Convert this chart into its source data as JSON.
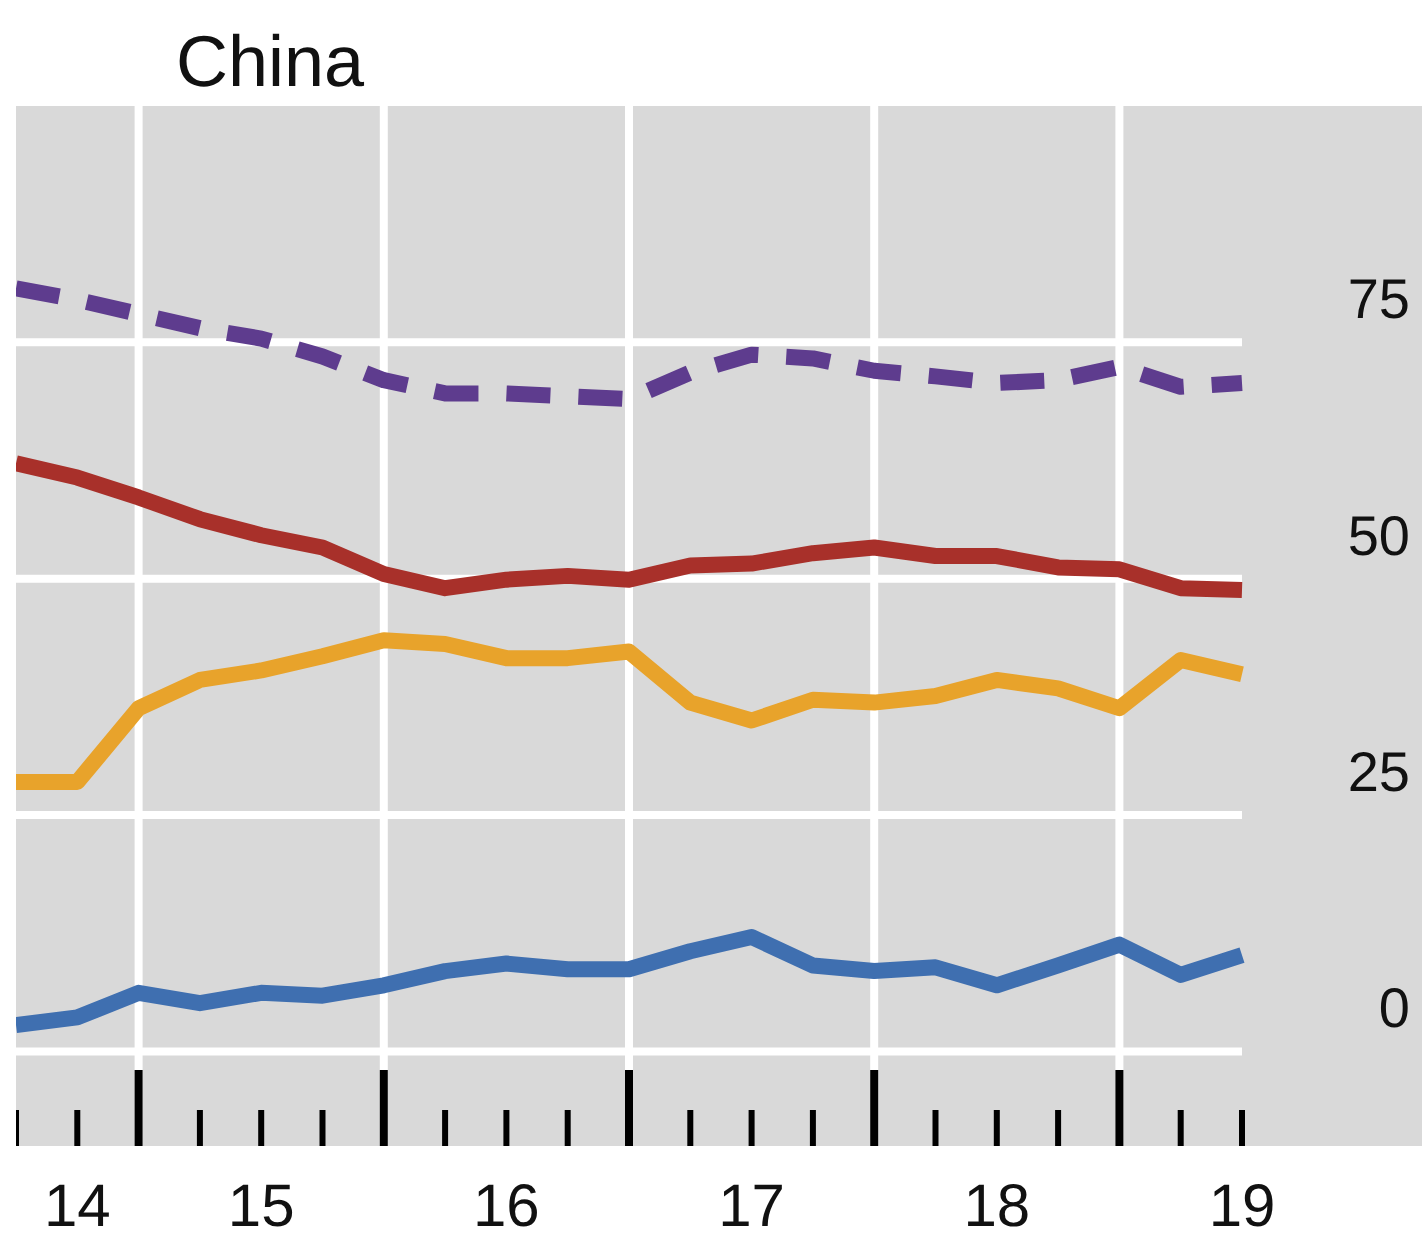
{
  "chart_data": {
    "type": "line",
    "title": "China",
    "categories": [
      null,
      "14",
      null,
      null,
      "15",
      null,
      null,
      null,
      "16",
      null,
      null,
      null,
      "17",
      null,
      null,
      null,
      "18",
      null,
      null,
      null,
      "19"
    ],
    "series": [
      {
        "color": "#5e3c8e",
        "line_style": "dashed",
        "values": [
          80.7,
          79.5,
          78,
          76.5,
          75.4,
          73.5,
          71,
          69.6,
          69.6,
          69.3,
          69,
          71.8,
          73.7,
          73.3,
          72,
          71.4,
          70.7,
          71,
          72.4,
          70.3,
          70.7
        ]
      },
      {
        "color": "#a8302a",
        "values": [
          62.2,
          60.7,
          58.6,
          56.3,
          54.6,
          53.3,
          50.5,
          49,
          49.9,
          50.3,
          49.9,
          51.4,
          51.6,
          52.7,
          53.3,
          52.4,
          52.4,
          51.2,
          51,
          49,
          48.8
        ]
      },
      {
        "color": "#e8a32b",
        "values": [
          28.5,
          28.5,
          36.3,
          39.3,
          40.3,
          41.8,
          43.5,
          43.1,
          41.6,
          41.6,
          42.3,
          36.9,
          35,
          37.2,
          36.9,
          37.6,
          39.3,
          38.4,
          36.3,
          41.4,
          39.9
        ]
      },
      {
        "color": "#3f6fb0",
        "values": [
          2.8,
          3.6,
          6.2,
          5.1,
          6.2,
          5.9,
          7,
          8.5,
          9.3,
          8.7,
          8.7,
          10.6,
          12.1,
          9.1,
          8.5,
          8.9,
          7,
          9.1,
          11.3,
          8.1,
          10.2
        ]
      }
    ],
    "ylim": [
      -10,
      100
    ],
    "yticks": [
      0,
      25,
      50,
      75
    ],
    "grid": true,
    "line_style": "solid"
  }
}
